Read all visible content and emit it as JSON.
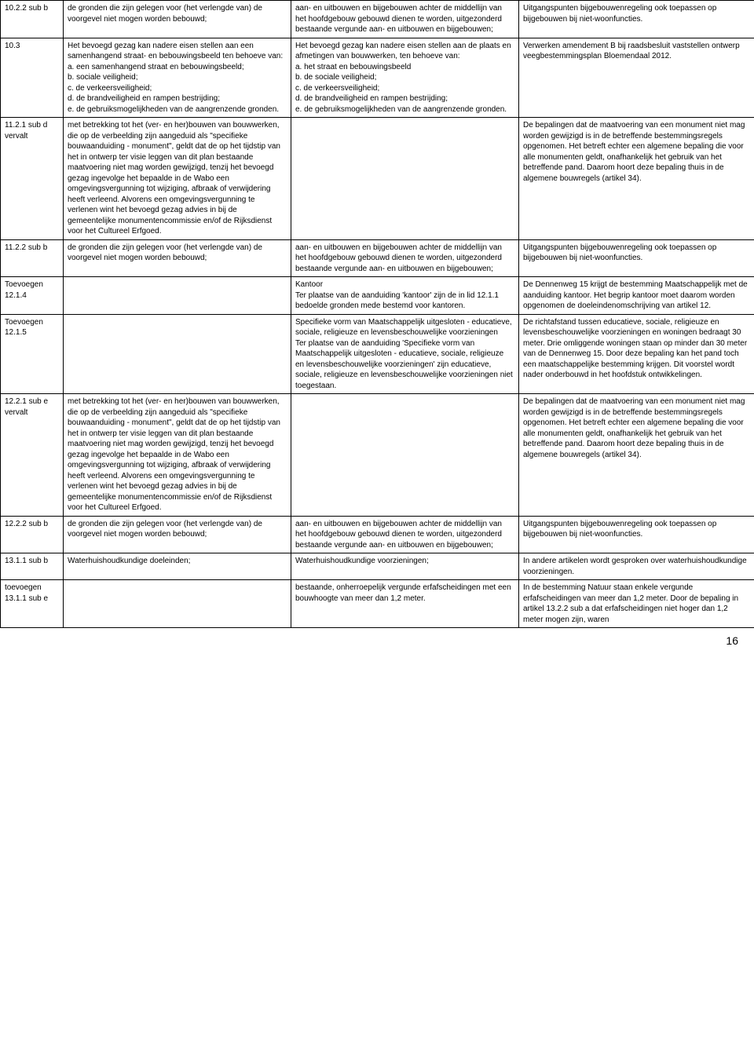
{
  "page_number": "16",
  "rows": [
    {
      "c1": "10.2.2 sub b",
      "c2": "de gronden die zijn gelegen voor (het verlengde van) de voorgevel niet mogen worden bebouwd;",
      "c3": "aan- en uitbouwen en bijgebouwen achter de middellijn van het hoofdgebouw gebouwd dienen te worden, uitgezonderd bestaande vergunde aan- en uitbouwen en bijgebouwen;",
      "c4": "Uitgangspunten bijgebouwenregeling ook toepassen op bijgebouwen bij niet-woonfuncties."
    },
    {
      "c1": "10.3",
      "c2": "Het bevoegd gezag kan nadere eisen stellen aan een samenhangend straat- en bebouwingsbeeld ten behoeve van:\na. een samenhangend straat en bebouwingsbeeld;\nb. sociale veiligheid;\nc. de verkeersveiligheid;\nd. de brandveiligheid en rampen bestrijding;\ne. de gebruiksmogelijkheden van de aangrenzende gronden.",
      "c3": "Het bevoegd gezag kan nadere eisen stellen aan de plaats en afmetingen van bouwwerken, ten behoeve van:\na. het straat en bebouwingsbeeld\nb. de sociale veiligheid;\nc. de verkeersveiligheid;\nd. de brandveiligheid en rampen bestrijding;\ne. de gebruiksmogelijkheden van de aangrenzende gronden.",
      "c4": "Verwerken amendement B bij raadsbesluit vaststellen ontwerp veegbestemmingsplan Bloemendaal 2012."
    },
    {
      "c1": "11.2.1 sub d\nvervalt",
      "c2": "met betrekking tot het (ver- en her)bouwen van bouwwerken, die op de verbeelding zijn aangeduid als \"specifieke bouwaanduiding - monument\", geldt dat de op het tijdstip van het in ontwerp ter visie leggen van dit plan bestaande maatvoering niet mag worden gewijzigd, tenzij het bevoegd gezag ingevolge het bepaalde in de Wabo een omgevingsvergunning tot wijziging, afbraak of verwijdering heeft verleend. Alvorens een omgevingsvergunning te verlenen wint het bevoegd gezag advies in bij de gemeentelijke monumentencommissie en/of de Rijksdienst voor het Cultureel Erfgoed.",
      "c3": "",
      "c4": "De bepalingen dat de maatvoering van een monument niet mag worden gewijzigd is in de betreffende bestemmingsregels opgenomen. Het betreft echter een algemene bepaling die voor alle monumenten geldt, onafhankelijk het gebruik van het betreffende pand. Daarom hoort deze bepaling thuis in de algemene bouwregels (artikel 34)."
    },
    {
      "c1": "11.2.2 sub b",
      "c2": "de gronden die zijn gelegen voor (het verlengde van) de voorgevel niet mogen worden bebouwd;",
      "c3": "aan- en uitbouwen en bijgebouwen achter de middellijn van het hoofdgebouw gebouwd dienen te worden, uitgezonderd bestaande vergunde aan- en uitbouwen en bijgebouwen;",
      "c4": "Uitgangspunten bijgebouwenregeling ook toepassen op bijgebouwen bij niet-woonfuncties."
    },
    {
      "c1": "Toevoegen 12.1.4",
      "c2": "",
      "c3": "Kantoor\nTer plaatse van de aanduiding 'kantoor' zijn de in lid 12.1.1 bedoelde gronden mede bestemd voor kantoren.",
      "c4": "De Dennenweg 15 krijgt de bestemming Maatschappelijk met de aanduiding kantoor. Het begrip kantoor moet daarom worden opgenomen de doeleindenomschrijving van artikel 12."
    },
    {
      "c1": "Toevoegen 12.1.5",
      "c2": "",
      "c3": "Specifieke vorm van Maatschappelijk uitgesloten - educatieve, sociale, religieuze en levensbeschouwelijke voorzieningen\nTer plaatse van de aanduiding 'Specifieke vorm van Maatschappelijk uitgesloten - educatieve, sociale, religieuze en levensbeschouwelijke voorzieningen' zijn educatieve, sociale, religieuze en levensbeschouwelijke voorzieningen niet toegestaan.",
      "c4": "De richtafstand tussen educatieve, sociale, religieuze en levensbeschouwelijke voorzieningen en woningen bedraagt 30 meter. Drie omliggende woningen staan op minder dan 30 meter van de Dennenweg 15. Door deze bepaling kan het pand toch een maatschappelijke bestemming krijgen. Dit voorstel wordt nader onderbouwd in het hoofdstuk ontwikkelingen."
    },
    {
      "c1": "12.2.1 sub e\nvervalt",
      "c2": "met betrekking tot het (ver- en her)bouwen van bouwwerken, die op de verbeelding zijn aangeduid als \"specifieke bouwaanduiding - monument\", geldt dat de op het tijdstip van het in ontwerp ter visie leggen van dit plan bestaande maatvoering niet mag worden gewijzigd, tenzij het bevoegd gezag ingevolge het bepaalde in de Wabo een omgevingsvergunning tot wijziging, afbraak of verwijdering heeft verleend. Alvorens een omgevingsvergunning te verlenen wint het bevoegd gezag advies in bij de gemeentelijke monumentencommissie en/of de Rijksdienst voor het Cultureel Erfgoed.",
      "c3": "",
      "c4": "De bepalingen dat de maatvoering van een monument niet mag worden gewijzigd is in de betreffende bestemmingsregels opgenomen. Het betreft echter een algemene bepaling die voor alle monumenten geldt, onafhankelijk het gebruik van het betreffende pand. Daarom hoort deze bepaling thuis in de algemene bouwregels (artikel 34)."
    },
    {
      "c1": "12.2.2 sub b",
      "c2": "de gronden die zijn gelegen voor (het verlengde van) de voorgevel niet mogen worden bebouwd;",
      "c3": "aan- en uitbouwen en bijgebouwen achter de middellijn van het hoofdgebouw gebouwd dienen te worden, uitgezonderd bestaande vergunde aan- en uitbouwen en bijgebouwen;",
      "c4": "Uitgangspunten bijgebouwenregeling ook toepassen op bijgebouwen bij niet-woonfuncties."
    },
    {
      "c1": "13.1.1 sub b",
      "c2": "Waterhuishoudkundige doeleinden;",
      "c3": "Waterhuishoudkundige voorzieningen;",
      "c4": "In andere artikelen wordt gesproken over waterhuishoudkundige voorzieningen."
    },
    {
      "c1": "toevoegen 13.1.1 sub e",
      "c2": "",
      "c3": "bestaande, onherroepelijk vergunde erfafscheidingen met een bouwhoogte van meer dan 1,2 meter.",
      "c4": "In de bestemming Natuur staan enkele vergunde erfafscheidingen van meer dan 1,2 meter. Door de bepaling in artikel 13.2.2 sub a dat erfafscheidingen niet hoger dan 1,2 meter mogen zijn, waren"
    }
  ]
}
